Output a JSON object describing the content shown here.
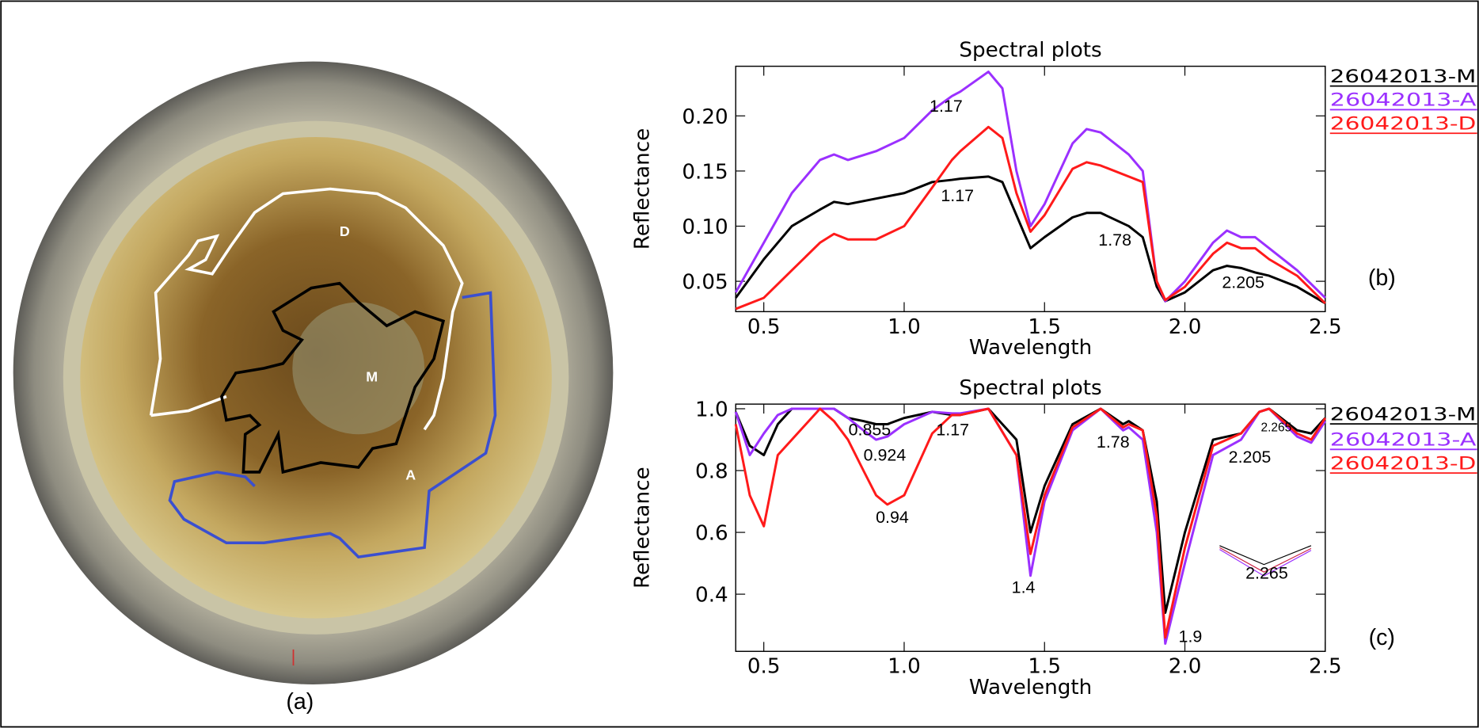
{
  "chart_data": [
    {
      "type": "line",
      "title": "Spectral plots",
      "xlabel": "Wavelength",
      "ylabel": "Reflectance",
      "panel_label": "(b)",
      "x": [
        0.4,
        0.5,
        0.6,
        0.7,
        0.75,
        0.8,
        0.9,
        1.0,
        1.1,
        1.17,
        1.2,
        1.3,
        1.35,
        1.4,
        1.45,
        1.5,
        1.6,
        1.65,
        1.7,
        1.8,
        1.85,
        1.9,
        1.93,
        2.0,
        2.1,
        2.15,
        2.2,
        2.25,
        2.3,
        2.4,
        2.5
      ],
      "series": [
        {
          "name": "26042013-M",
          "color": "#000000",
          "values": [
            0.035,
            0.07,
            0.1,
            0.115,
            0.122,
            0.12,
            0.125,
            0.13,
            0.14,
            0.142,
            0.143,
            0.145,
            0.14,
            0.11,
            0.08,
            0.09,
            0.108,
            0.112,
            0.112,
            0.1,
            0.09,
            0.045,
            0.032,
            0.04,
            0.06,
            0.064,
            0.062,
            0.058,
            0.055,
            0.045,
            0.03
          ]
        },
        {
          "name": "26042013-A",
          "color": "#9b30ff",
          "values": [
            0.04,
            0.085,
            0.13,
            0.16,
            0.165,
            0.16,
            0.168,
            0.18,
            0.205,
            0.218,
            0.222,
            0.24,
            0.225,
            0.15,
            0.1,
            0.12,
            0.175,
            0.188,
            0.185,
            0.165,
            0.15,
            0.05,
            0.032,
            0.05,
            0.085,
            0.096,
            0.09,
            0.09,
            0.08,
            0.06,
            0.035
          ]
        },
        {
          "name": "26042013-D",
          "color": "#ff1a1a",
          "values": [
            0.025,
            0.035,
            0.06,
            0.085,
            0.093,
            0.088,
            0.088,
            0.1,
            0.135,
            0.16,
            0.168,
            0.19,
            0.18,
            0.13,
            0.095,
            0.11,
            0.152,
            0.158,
            0.155,
            0.145,
            0.14,
            0.05,
            0.033,
            0.045,
            0.075,
            0.085,
            0.08,
            0.08,
            0.07,
            0.055,
            0.03
          ]
        }
      ],
      "xlim": [
        0.4,
        2.5
      ],
      "ylim": [
        0.0225,
        0.245
      ],
      "xticks": [
        0.5,
        {
          "value": 1,
          "label": "1.0"
        },
        1.5,
        {
          "value": 2,
          "label": "2.0"
        },
        2.5
      ],
      "yticks": [
        0.05,
        {
          "value": 0.1,
          "label": "0.10"
        },
        0.15,
        {
          "value": 0.2,
          "label": "0.20"
        }
      ],
      "annotations": [
        "1.17",
        "1.17",
        "1.78",
        "2.205"
      ]
    },
    {
      "type": "line",
      "title": "Spectral plots",
      "xlabel": "Wavelength",
      "ylabel": "Reflectance",
      "panel_label": "(c)",
      "x": [
        0.4,
        0.45,
        0.5,
        0.55,
        0.6,
        0.7,
        0.75,
        0.8,
        0.855,
        0.9,
        0.94,
        1.0,
        1.1,
        1.17,
        1.2,
        1.3,
        1.4,
        1.45,
        1.5,
        1.6,
        1.7,
        1.78,
        1.8,
        1.85,
        1.9,
        1.93,
        2.0,
        2.1,
        2.2,
        2.265,
        2.3,
        2.4,
        2.45,
        2.5
      ],
      "series": [
        {
          "name": "26042013-M",
          "color": "#000000",
          "values": [
            0.99,
            0.88,
            0.85,
            0.95,
            1.0,
            1.0,
            1.0,
            0.97,
            0.96,
            0.95,
            0.95,
            0.97,
            0.99,
            0.98,
            0.98,
            1.0,
            0.9,
            0.6,
            0.75,
            0.95,
            1.0,
            0.95,
            0.96,
            0.93,
            0.7,
            0.34,
            0.6,
            0.9,
            0.92,
            0.99,
            1.0,
            0.93,
            0.92,
            0.97
          ]
        },
        {
          "name": "26042013-A",
          "color": "#9b30ff",
          "values": [
            0.99,
            0.85,
            0.92,
            0.98,
            1.0,
            1.0,
            1.0,
            0.97,
            0.93,
            0.9,
            0.91,
            0.95,
            0.99,
            0.985,
            0.985,
            1.0,
            0.85,
            0.46,
            0.7,
            0.93,
            1.0,
            0.93,
            0.94,
            0.9,
            0.6,
            0.24,
            0.5,
            0.85,
            0.9,
            0.99,
            1.0,
            0.91,
            0.89,
            0.96
          ]
        },
        {
          "name": "26042013-D",
          "color": "#ff1a1a",
          "values": [
            0.95,
            0.72,
            0.62,
            0.85,
            0.9,
            1.0,
            0.96,
            0.9,
            0.8,
            0.72,
            0.69,
            0.72,
            0.92,
            0.98,
            0.98,
            1.0,
            0.85,
            0.53,
            0.72,
            0.94,
            1.0,
            0.94,
            0.95,
            0.93,
            0.65,
            0.26,
            0.55,
            0.88,
            0.92,
            0.99,
            1.0,
            0.92,
            0.9,
            0.97
          ]
        }
      ],
      "xlim": [
        0.4,
        2.5
      ],
      "ylim": [
        0.215,
        1.015
      ],
      "xticks": [
        0.5,
        {
          "value": 1,
          "label": "1.0"
        },
        1.5,
        {
          "value": 2,
          "label": "2.0"
        },
        2.5
      ],
      "yticks": [
        0.4,
        0.6,
        0.8,
        {
          "value": 1,
          "label": "1.0"
        }
      ],
      "annotations": [
        "0.855",
        "0.924",
        "1.17",
        "1.78",
        "2.265",
        "2.205",
        "0.94",
        "1.4",
        "1.9",
        "2.265"
      ]
    }
  ],
  "figure": {
    "panel_label": "(a)",
    "region_labels": [
      "D",
      "M",
      "A"
    ]
  }
}
